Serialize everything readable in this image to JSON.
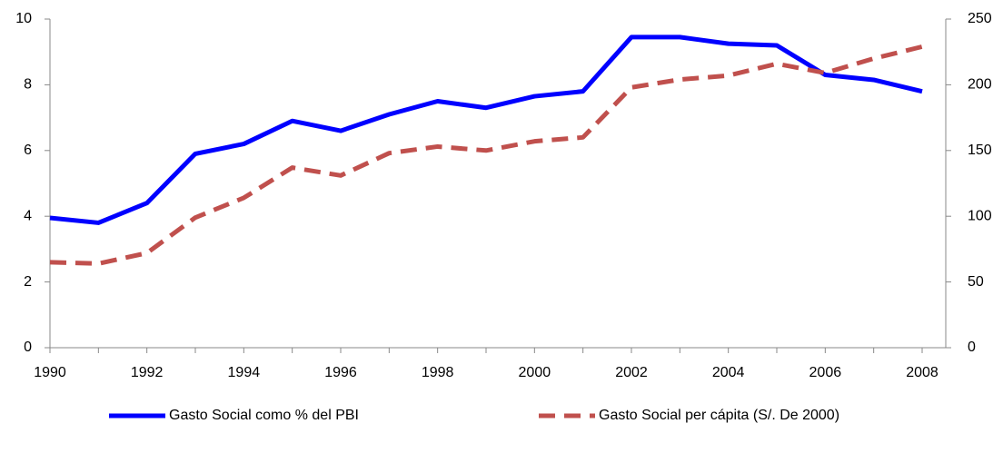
{
  "chart_data": {
    "type": "line",
    "x": [
      1990,
      1991,
      1992,
      1993,
      1994,
      1995,
      1996,
      1997,
      1998,
      1999,
      2000,
      2001,
      2002,
      2003,
      2004,
      2005,
      2006,
      2007,
      2008
    ],
    "series": [
      {
        "name": "Gasto Social como % del PBI",
        "color": "#0000ff",
        "dash": false,
        "values": [
          3.95,
          3.8,
          4.4,
          5.9,
          6.2,
          6.9,
          6.6,
          7.1,
          7.5,
          7.3,
          7.65,
          7.8,
          9.45,
          9.45,
          9.25,
          9.2,
          8.3,
          8.15,
          7.8
        ]
      },
      {
        "name": "Gasto Social per cápita (S/. De 2000)",
        "color": "#c0504d",
        "dash": true,
        "axis": "y2",
        "values": [
          65,
          64,
          72,
          99,
          114,
          137,
          131,
          148,
          153,
          150,
          157,
          160,
          198,
          204,
          207,
          216,
          209,
          220,
          229
        ]
      }
    ],
    "xlim": [
      1990,
      2008
    ],
    "xticks": [
      1990,
      1992,
      1994,
      1996,
      1998,
      2000,
      2002,
      2004,
      2006,
      2008
    ],
    "ylim": [
      0,
      10
    ],
    "yticks": [
      0,
      2,
      4,
      6,
      8,
      10
    ],
    "y2lim": [
      0,
      250
    ],
    "y2ticks": [
      0,
      50,
      100,
      150,
      200,
      250
    ],
    "grid": false,
    "legend": "bottom"
  }
}
